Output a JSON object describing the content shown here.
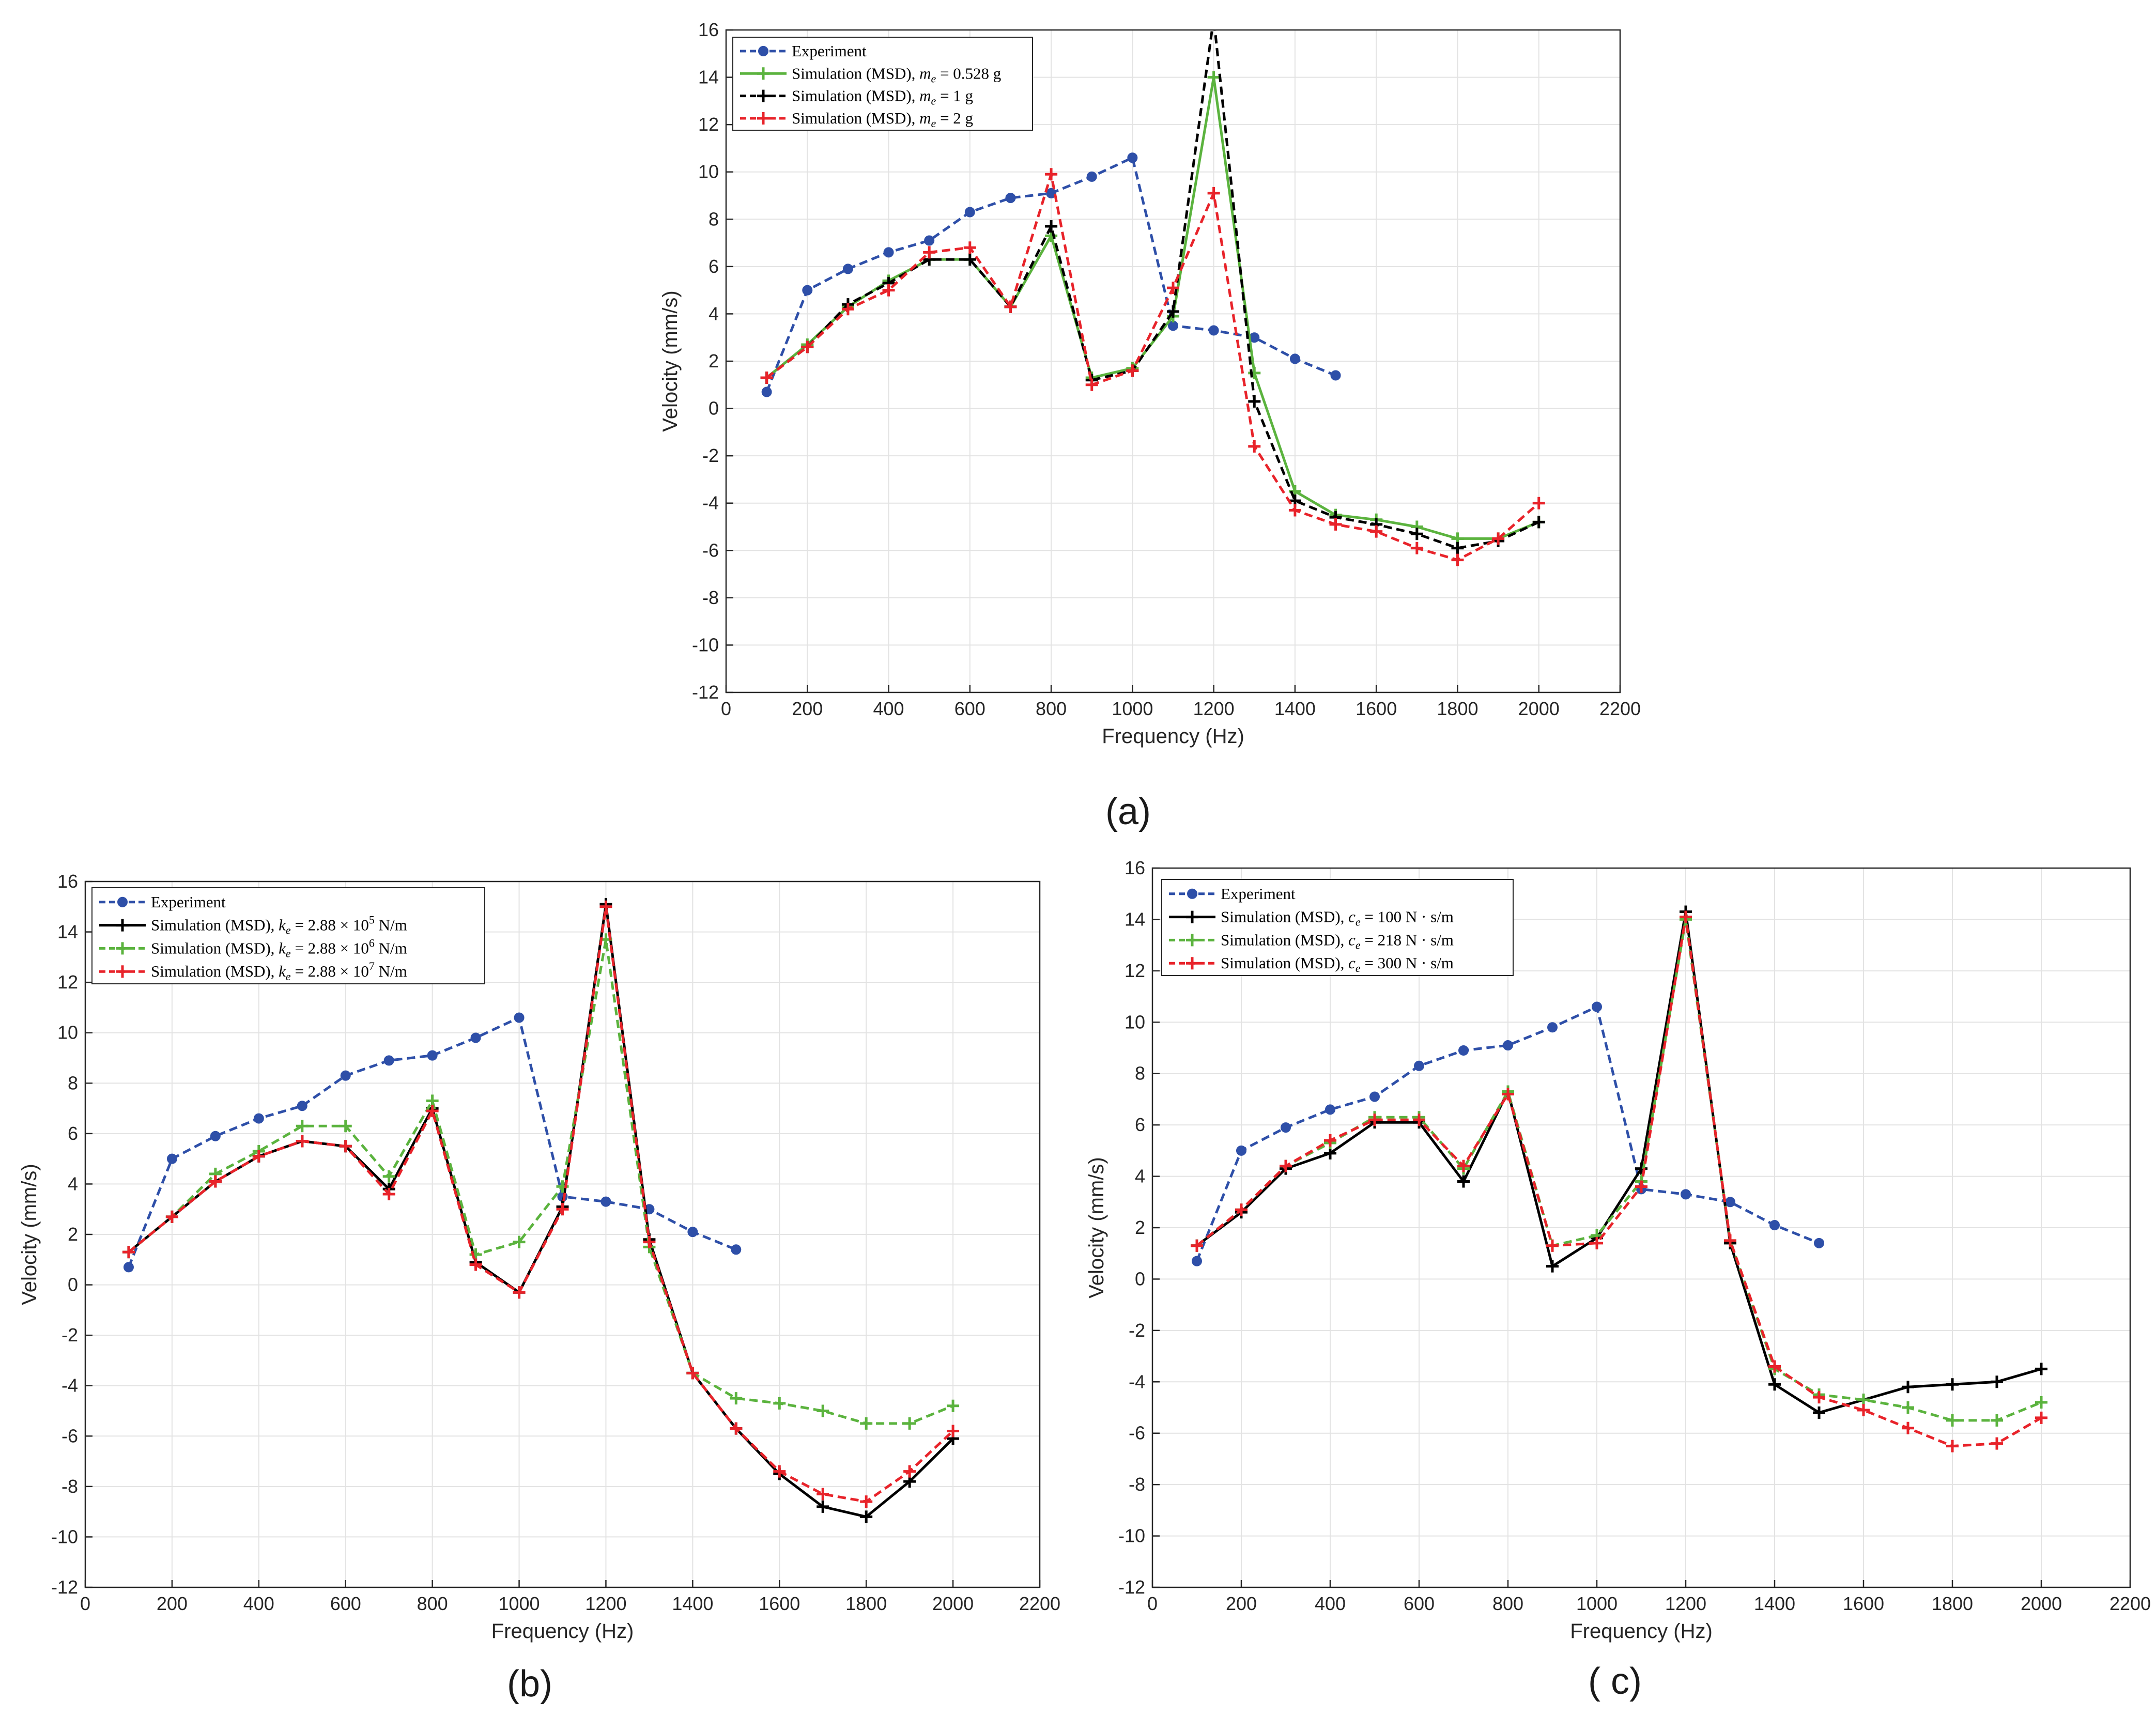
{
  "chart_data": [
    {
      "id": "a",
      "type": "line",
      "panel_label": "(a)",
      "xlabel": "Frequency (Hz)",
      "ylabel": "Velocity (mm/s)",
      "xlim": [
        0,
        2200
      ],
      "ylim": [
        -12,
        16
      ],
      "xticks": [
        0,
        200,
        400,
        600,
        800,
        1000,
        1200,
        1400,
        1600,
        1800,
        2000,
        2200
      ],
      "yticks": [
        -12,
        -10,
        -8,
        -6,
        -4,
        -2,
        0,
        2,
        4,
        6,
        8,
        10,
        12,
        14,
        16
      ],
      "grid": true,
      "legend_position": "top-left",
      "series": [
        {
          "name": "Experiment",
          "color": "#2e4fa8",
          "style": "dashed",
          "marker": "circle",
          "x": [
            100,
            200,
            300,
            400,
            500,
            600,
            700,
            800,
            900,
            1000,
            1100,
            1200,
            1300,
            1400,
            1500
          ],
          "y": [
            0.7,
            5.0,
            5.9,
            6.6,
            7.1,
            8.3,
            8.9,
            9.1,
            9.8,
            10.6,
            3.5,
            3.3,
            3.0,
            2.1,
            1.4
          ]
        },
        {
          "name": "Simulation (MSD), m_e = 0.528 g",
          "color": "#5bb33e",
          "style": "solid",
          "marker": "plus",
          "x": [
            100,
            200,
            300,
            400,
            500,
            600,
            700,
            800,
            900,
            1000,
            1100,
            1200,
            1300,
            1400,
            1500,
            1600,
            1700,
            1800,
            1900,
            2000
          ],
          "y": [
            1.3,
            2.7,
            4.3,
            5.4,
            6.3,
            6.3,
            4.3,
            7.3,
            1.3,
            1.7,
            3.9,
            14.0,
            1.5,
            -3.5,
            -4.5,
            -4.7,
            -5.0,
            -5.5,
            -5.5,
            -4.8
          ]
        },
        {
          "name": "Simulation (MSD), m_e = 1 g",
          "color": "#000000",
          "style": "dashed",
          "marker": "plus",
          "x": [
            100,
            200,
            300,
            400,
            500,
            600,
            700,
            800,
            900,
            1000,
            1100,
            1200,
            1300,
            1400,
            1500,
            1600,
            1700,
            1800,
            1900,
            2000
          ],
          "y": [
            1.3,
            2.6,
            4.4,
            5.3,
            6.3,
            6.3,
            4.3,
            7.7,
            1.2,
            1.6,
            4.1,
            16.5,
            0.3,
            -3.9,
            -4.6,
            -4.9,
            -5.3,
            -5.9,
            -5.6,
            -4.8
          ]
        },
        {
          "name": "Simulation (MSD), m_e = 2 g",
          "color": "#e8232a",
          "style": "dashed",
          "marker": "plus",
          "x": [
            100,
            200,
            300,
            400,
            500,
            600,
            700,
            800,
            900,
            1000,
            1100,
            1200,
            1300,
            1400,
            1500,
            1600,
            1700,
            1800,
            1900,
            2000
          ],
          "y": [
            1.3,
            2.6,
            4.2,
            5.0,
            6.6,
            6.8,
            4.3,
            9.9,
            1.0,
            1.6,
            5.1,
            9.1,
            -1.6,
            -4.3,
            -4.9,
            -5.2,
            -5.9,
            -6.4,
            -5.5,
            -4.0
          ]
        }
      ],
      "legend": [
        {
          "prefix": "Experiment",
          "sym": "",
          "sub": "",
          "value": ""
        },
        {
          "prefix": "Simulation (MSD), ",
          "sym": "m",
          "sub": "e",
          "value": " = 0.528 g"
        },
        {
          "prefix": "Simulation (MSD), ",
          "sym": "m",
          "sub": "e",
          "value": " = 1 g"
        },
        {
          "prefix": "Simulation (MSD), ",
          "sym": "m",
          "sub": "e",
          "value": " = 2 g"
        }
      ]
    },
    {
      "id": "b",
      "type": "line",
      "panel_label": "(b)",
      "xlabel": "Frequency (Hz)",
      "ylabel": "Velocity (mm/s)",
      "xlim": [
        0,
        2200
      ],
      "ylim": [
        -12,
        16
      ],
      "xticks": [
        0,
        200,
        400,
        600,
        800,
        1000,
        1200,
        1400,
        1600,
        1800,
        2000,
        2200
      ],
      "yticks": [
        -12,
        -10,
        -8,
        -6,
        -4,
        -2,
        0,
        2,
        4,
        6,
        8,
        10,
        12,
        14,
        16
      ],
      "grid": true,
      "legend_position": "top-left",
      "series": [
        {
          "name": "Experiment",
          "color": "#2e4fa8",
          "style": "dashed",
          "marker": "circle",
          "x": [
            100,
            200,
            300,
            400,
            500,
            600,
            700,
            800,
            900,
            1000,
            1100,
            1200,
            1300,
            1400,
            1500
          ],
          "y": [
            0.7,
            5.0,
            5.9,
            6.6,
            7.1,
            8.3,
            8.9,
            9.1,
            9.8,
            10.6,
            3.5,
            3.3,
            3.0,
            2.1,
            1.4
          ]
        },
        {
          "name": "Simulation (MSD), k_e = 2.88 × 10^5 N/m",
          "color": "#000000",
          "style": "solid",
          "marker": "plus",
          "x": [
            100,
            200,
            300,
            400,
            500,
            600,
            700,
            800,
            900,
            1000,
            1100,
            1200,
            1300,
            1400,
            1500,
            1600,
            1700,
            1800,
            1900,
            2000
          ],
          "y": [
            1.3,
            2.7,
            4.1,
            5.1,
            5.7,
            5.5,
            3.8,
            7.0,
            0.9,
            -0.3,
            3.1,
            15.1,
            1.8,
            -3.5,
            -5.7,
            -7.5,
            -8.8,
            -9.2,
            -7.8,
            -6.1
          ]
        },
        {
          "name": "Simulation (MSD), k_e = 2.88 × 10^6 N/m",
          "color": "#5bb33e",
          "style": "dashed",
          "marker": "plus",
          "x": [
            100,
            200,
            300,
            400,
            500,
            600,
            700,
            800,
            900,
            1000,
            1100,
            1200,
            1300,
            1400,
            1500,
            1600,
            1700,
            1800,
            1900,
            2000
          ],
          "y": [
            1.3,
            2.7,
            4.4,
            5.3,
            6.3,
            6.3,
            4.3,
            7.3,
            1.2,
            1.7,
            3.9,
            13.7,
            1.5,
            -3.5,
            -4.5,
            -4.7,
            -5.0,
            -5.5,
            -5.5,
            -4.8
          ]
        },
        {
          "name": "Simulation (MSD), k_e = 2.88 × 10^7 N/m",
          "color": "#e8232a",
          "style": "dashed",
          "marker": "plus",
          "x": [
            100,
            200,
            300,
            400,
            500,
            600,
            700,
            800,
            900,
            1000,
            1100,
            1200,
            1300,
            1400,
            1500,
            1600,
            1700,
            1800,
            1900,
            2000
          ],
          "y": [
            1.3,
            2.7,
            4.1,
            5.1,
            5.7,
            5.5,
            3.6,
            6.9,
            0.8,
            -0.3,
            3.0,
            15.0,
            1.7,
            -3.5,
            -5.7,
            -7.4,
            -8.3,
            -8.6,
            -7.4,
            -5.8
          ]
        }
      ],
      "legend": [
        {
          "prefix": "Experiment",
          "sym": "",
          "sub": "",
          "value": "",
          "exp": ""
        },
        {
          "prefix": "Simulation (MSD), ",
          "sym": "k",
          "sub": "e",
          "value": " = 2.88 × 10",
          "exp": "5",
          "unit": " N/m"
        },
        {
          "prefix": "Simulation (MSD), ",
          "sym": "k",
          "sub": "e",
          "value": " = 2.88 × 10",
          "exp": "6",
          "unit": " N/m"
        },
        {
          "prefix": "Simulation (MSD), ",
          "sym": "k",
          "sub": "e",
          "value": " = 2.88 × 10",
          "exp": "7",
          "unit": " N/m"
        }
      ]
    },
    {
      "id": "c",
      "type": "line",
      "panel_label": "( c)",
      "xlabel": "Frequency (Hz)",
      "ylabel": "Velocity (mm/s)",
      "xlim": [
        0,
        2200
      ],
      "ylim": [
        -12,
        16
      ],
      "xticks": [
        0,
        200,
        400,
        600,
        800,
        1000,
        1200,
        1400,
        1600,
        1800,
        2000,
        2200
      ],
      "yticks": [
        -12,
        -10,
        -8,
        -6,
        -4,
        -2,
        0,
        2,
        4,
        6,
        8,
        10,
        12,
        14,
        16
      ],
      "grid": true,
      "legend_position": "top-left",
      "series": [
        {
          "name": "Experiment",
          "color": "#2e4fa8",
          "style": "dashed",
          "marker": "circle",
          "x": [
            100,
            200,
            300,
            400,
            500,
            600,
            700,
            800,
            900,
            1000,
            1100,
            1200,
            1300,
            1400,
            1500
          ],
          "y": [
            0.7,
            5.0,
            5.9,
            6.6,
            7.1,
            8.3,
            8.9,
            9.1,
            9.8,
            10.6,
            3.5,
            3.3,
            3.0,
            2.1,
            1.4
          ]
        },
        {
          "name": "Simulation (MSD), c_e = 100 N·s/m",
          "color": "#000000",
          "style": "solid",
          "marker": "plus",
          "x": [
            100,
            200,
            300,
            400,
            500,
            600,
            700,
            800,
            900,
            1000,
            1100,
            1200,
            1300,
            1400,
            1500,
            1600,
            1700,
            1800,
            1900,
            2000
          ],
          "y": [
            1.3,
            2.6,
            4.3,
            4.9,
            6.1,
            6.1,
            3.8,
            7.3,
            0.5,
            1.6,
            4.3,
            14.3,
            1.4,
            -4.1,
            -5.2,
            -4.7,
            -4.2,
            -4.1,
            -4.0,
            -3.5
          ]
        },
        {
          "name": "Simulation (MSD), c_e = 218 N·s/m",
          "color": "#5bb33e",
          "style": "dashed",
          "marker": "plus",
          "x": [
            100,
            200,
            300,
            400,
            500,
            600,
            700,
            800,
            900,
            1000,
            1100,
            1200,
            1300,
            1400,
            1500,
            1600,
            1700,
            1800,
            1900,
            2000
          ],
          "y": [
            1.3,
            2.7,
            4.4,
            5.3,
            6.3,
            6.3,
            4.3,
            7.3,
            1.3,
            1.7,
            3.8,
            14.0,
            1.5,
            -3.5,
            -4.5,
            -4.7,
            -5.0,
            -5.5,
            -5.5,
            -4.8
          ]
        },
        {
          "name": "Simulation (MSD), c_e = 300 N·s/m",
          "color": "#e8232a",
          "style": "dashed",
          "marker": "plus",
          "x": [
            100,
            200,
            300,
            400,
            500,
            600,
            700,
            800,
            900,
            1000,
            1100,
            1200,
            1300,
            1400,
            1500,
            1600,
            1700,
            1800,
            1900,
            2000
          ],
          "y": [
            1.3,
            2.7,
            4.4,
            5.4,
            6.2,
            6.2,
            4.4,
            7.2,
            1.3,
            1.4,
            3.6,
            14.1,
            1.5,
            -3.4,
            -4.6,
            -5.1,
            -5.8,
            -6.5,
            -6.4,
            -5.4
          ]
        }
      ],
      "legend": [
        {
          "prefix": "Experiment",
          "sym": "",
          "sub": "",
          "value": "",
          "exp": ""
        },
        {
          "prefix": "Simulation (MSD), ",
          "sym": "c",
          "sub": "e",
          "value": " = 100 N · s/m"
        },
        {
          "prefix": "Simulation (MSD), ",
          "sym": "c",
          "sub": "e",
          "value": " = 218 N · s/m"
        },
        {
          "prefix": "Simulation (MSD), ",
          "sym": "c",
          "sub": "e",
          "value": " = 300 N · s/m"
        }
      ]
    }
  ]
}
